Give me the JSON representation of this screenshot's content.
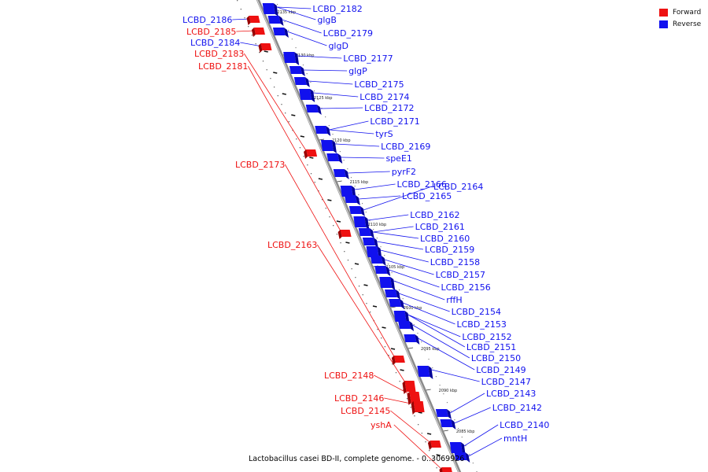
{
  "legend": {
    "forward_label": "Forward",
    "reverse_label": "Reverse",
    "forward_color": "#ee1111",
    "reverse_color": "#1111ee"
  },
  "caption": "Lactobacillus casei BD-II, complete genome. - 0..3069926",
  "ticks": [
    "2135 kbp",
    "2130 kbp",
    "2125 kbp",
    "2120 kbp",
    "2115 kbp",
    "2110 kbp",
    "2105 kbp",
    "2100 kbp",
    "2095 kbp",
    "2090 kbp",
    "2085 kbp"
  ],
  "forward_genes": [
    "LCBD_2186",
    "LCBD_2185",
    "LCBD_2184",
    "LCBD_2183",
    "LCBD_2181",
    "LCBD_2173",
    "LCBD_2163",
    "LCBD_2148",
    "LCBD_2146",
    "LCBD_2145",
    "yshA"
  ],
  "reverse_genes": [
    "LCBD_2182",
    "glgB",
    "LCBD_2179",
    "glgD",
    "LCBD_2177",
    "glgP",
    "LCBD_2175",
    "LCBD_2174",
    "LCBD_2172",
    "LCBD_2171",
    "tyrS",
    "LCBD_2169",
    "speE1",
    "pyrF2",
    "LCBD_2166",
    "LCBD_2165",
    "LCBD_2164",
    "LCBD_2162",
    "LCBD_2161",
    "LCBD_2160",
    "LCBD_2159",
    "LCBD_2158",
    "LCBD_2157",
    "LCBD_2156",
    "rffH",
    "LCBD_2154",
    "LCBD_2153",
    "LCBD_2152",
    "LCBD_2151",
    "LCBD_2150",
    "LCBD_2149",
    "LCBD_2147",
    "LCBD_2143",
    "LCBD_2142",
    "LCBD_2140",
    "mntH"
  ]
}
